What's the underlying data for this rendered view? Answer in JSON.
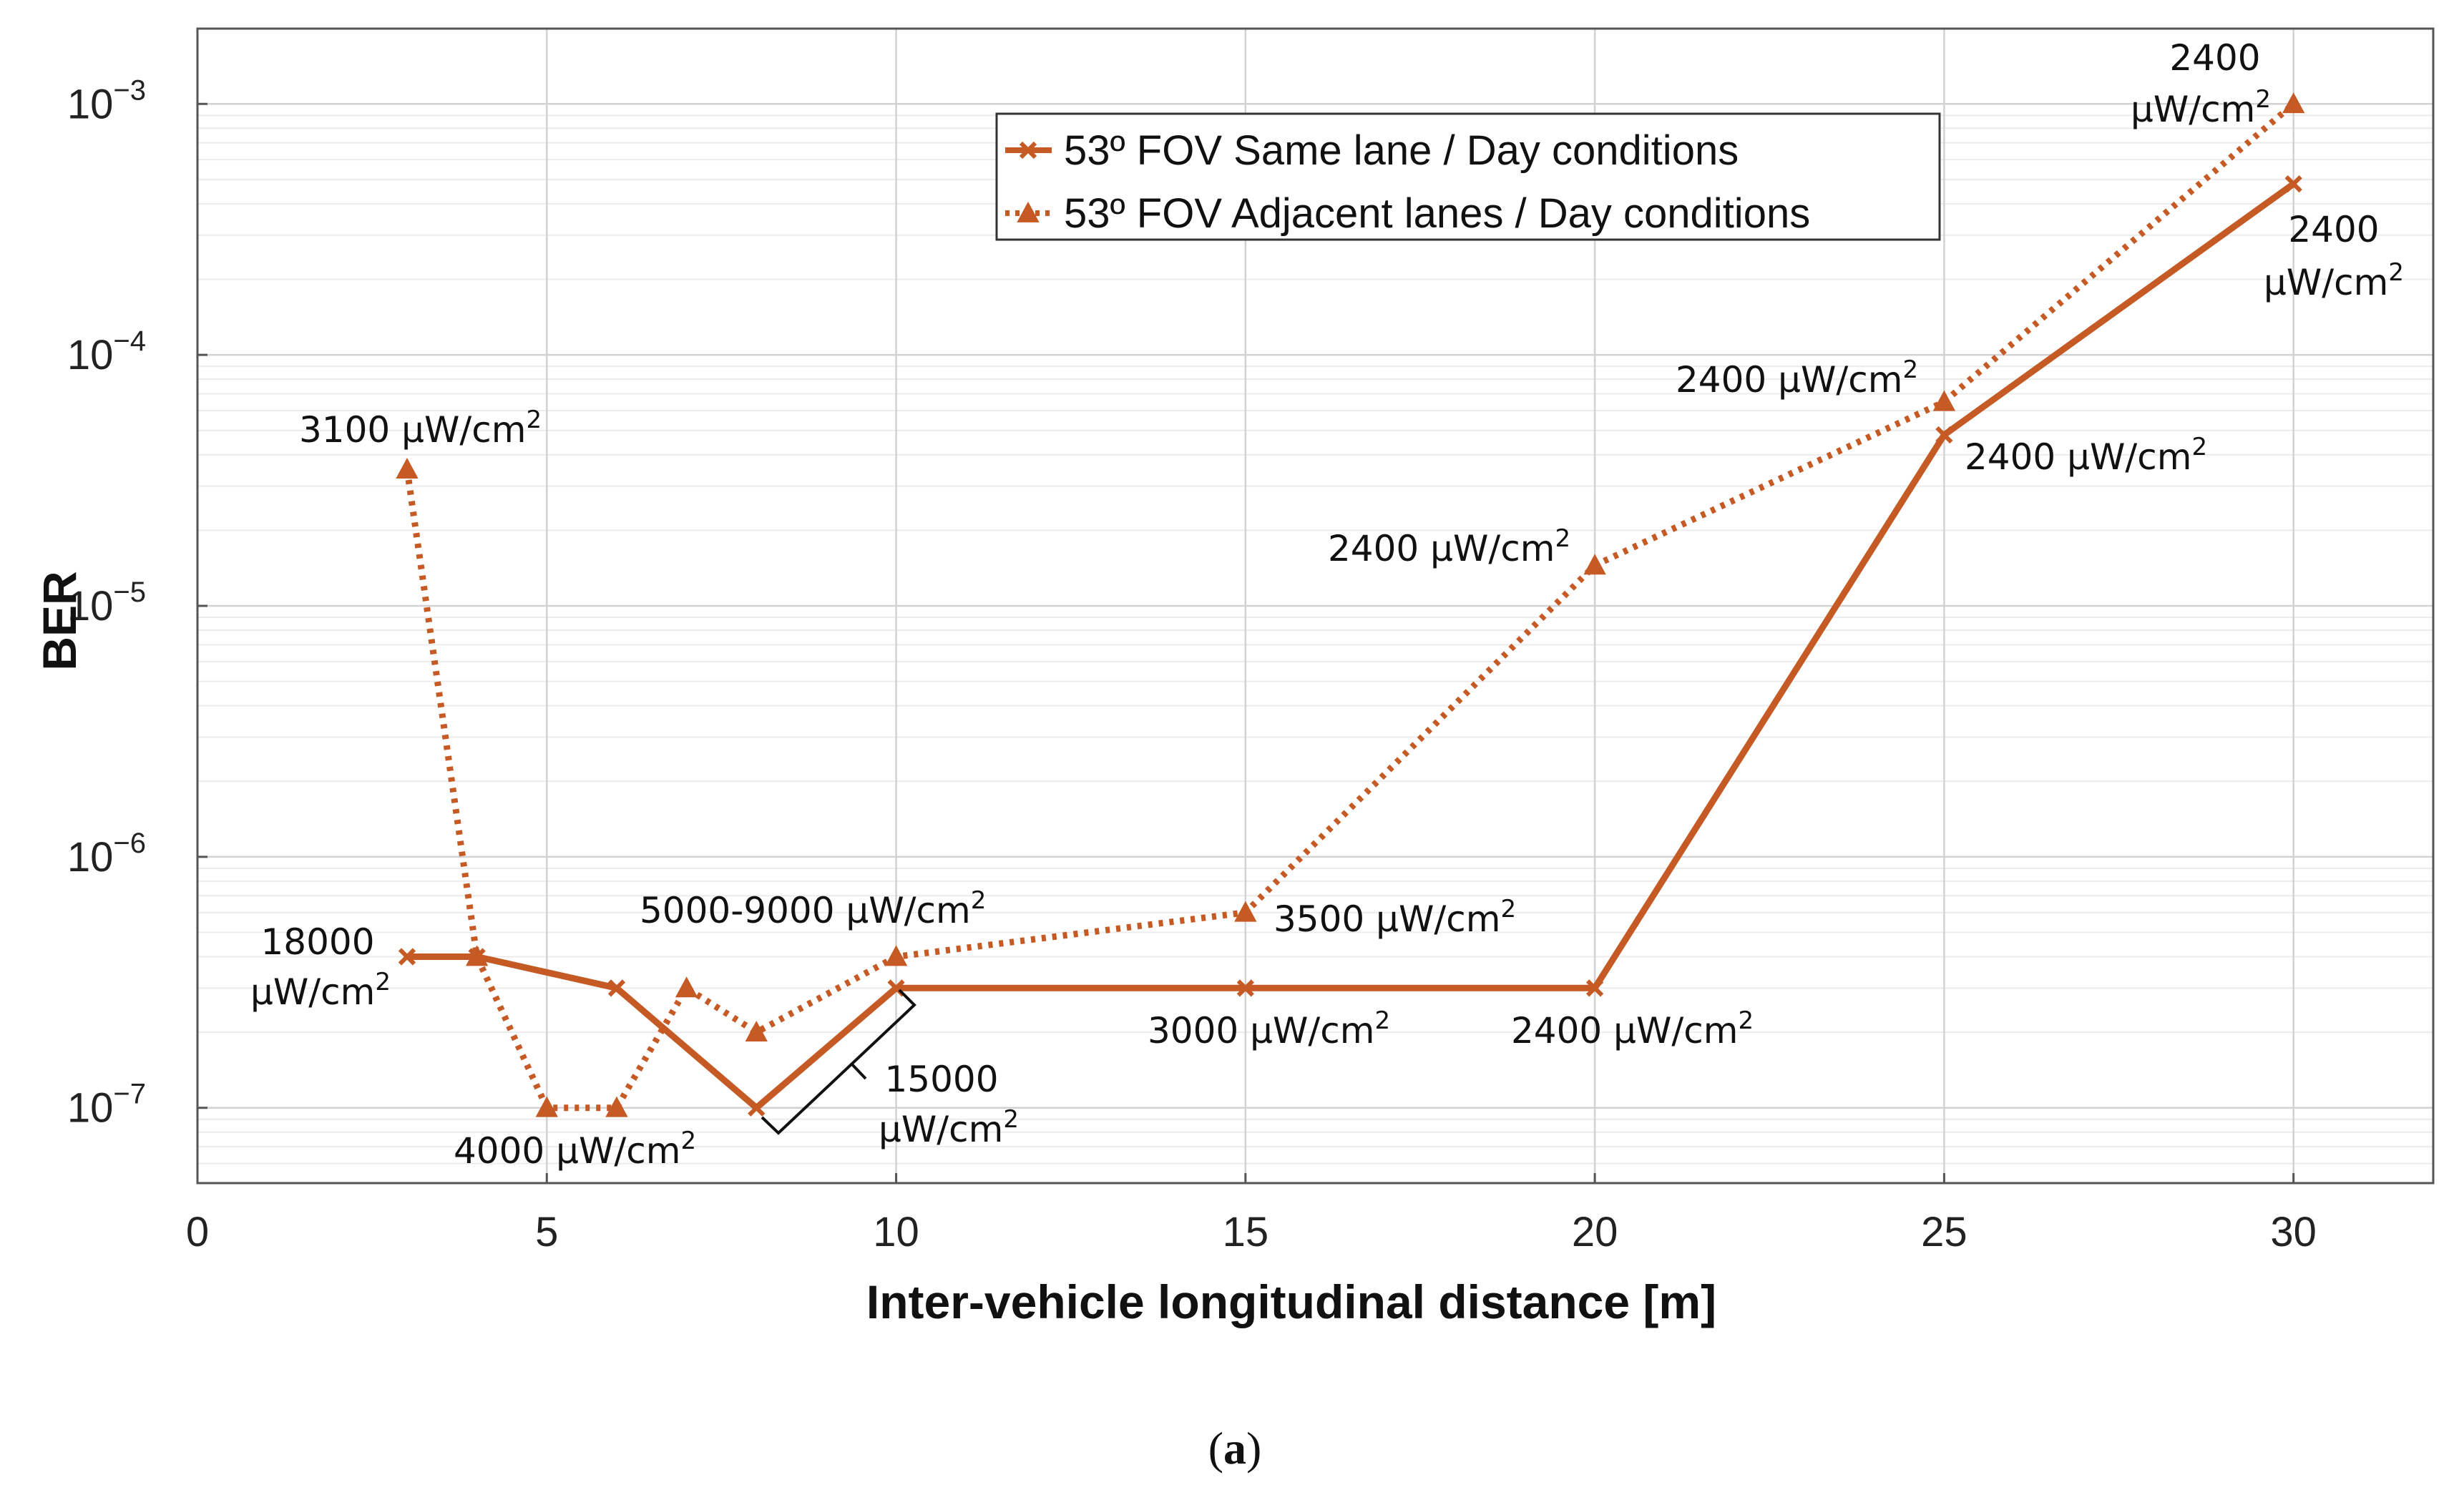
{
  "chart_data": {
    "type": "line",
    "title": "",
    "xlabel": "Inter-vehicle longitudinal distance [m]",
    "ylabel": "BER",
    "xlim": [
      0,
      32
    ],
    "ylim_log10": [
      -7.3,
      -2.7
    ],
    "yscale": "log",
    "grid": true,
    "legend_position": "top-center",
    "x_ticks": [
      0,
      5,
      10,
      15,
      20,
      25,
      30
    ],
    "y_ticks": [
      {
        "base": "10",
        "exp": "−3",
        "log10": -3
      },
      {
        "base": "10",
        "exp": "−4",
        "log10": -4
      },
      {
        "base": "10",
        "exp": "−5",
        "log10": -5
      },
      {
        "base": "10",
        "exp": "−6",
        "log10": -6
      },
      {
        "base": "10",
        "exp": "−7",
        "log10": -7
      }
    ],
    "series": [
      {
        "name": "53º FOV Same lane / Day conditions",
        "style": "solid",
        "marker": "x",
        "color": "#C55A24",
        "x": [
          3,
          4,
          6,
          8,
          10,
          15,
          20,
          25,
          30
        ],
        "y": [
          4e-07,
          4e-07,
          3e-07,
          1e-07,
          3e-07,
          3e-07,
          3e-07,
          4.8e-05,
          0.00048
        ]
      },
      {
        "name": "53º FOV Adjacent lanes / Day conditions",
        "style": "dotted",
        "marker": "triangle",
        "color": "#C55A24",
        "x": [
          3,
          4,
          5,
          6,
          7,
          8,
          10,
          15,
          20,
          25,
          30
        ],
        "y": [
          3.5e-05,
          4e-07,
          1e-07,
          1e-07,
          3e-07,
          2e-07,
          4e-07,
          6e-07,
          1.45e-05,
          6.5e-05,
          0.001
        ]
      }
    ],
    "annotations": [
      {
        "id": "a1",
        "lines": [
          "3100 μW/cm",
          "2"
        ]
      },
      {
        "id": "a2",
        "lines": [
          "18000"
        ]
      },
      {
        "id": "a3",
        "lines": [
          "μW/cm",
          "2"
        ]
      },
      {
        "id": "a4",
        "lines": [
          "4000 μW/cm",
          "2"
        ]
      },
      {
        "id": "a5",
        "lines": [
          "5000-9000 μW/cm",
          "2"
        ]
      },
      {
        "id": "a6",
        "lines": [
          "15000"
        ]
      },
      {
        "id": "a7",
        "lines": [
          "μW/cm",
          "2"
        ]
      },
      {
        "id": "a8",
        "lines": [
          "3500 μW/cm",
          "2"
        ]
      },
      {
        "id": "a9",
        "lines": [
          "3000 μW/cm",
          "2"
        ]
      },
      {
        "id": "a10",
        "lines": [
          "2400 μW/cm",
          "2"
        ]
      },
      {
        "id": "a11",
        "lines": [
          "2400 μW/cm",
          "2"
        ]
      },
      {
        "id": "a12",
        "lines": [
          "2400 μW/cm",
          "2"
        ]
      },
      {
        "id": "a13",
        "lines": [
          "2400 μW/cm",
          "2"
        ]
      },
      {
        "id": "a14",
        "lines": [
          "2400"
        ]
      },
      {
        "id": "a15",
        "lines": [
          "μW/cm",
          "2"
        ]
      },
      {
        "id": "a16",
        "lines": [
          "2400"
        ]
      },
      {
        "id": "a17",
        "lines": [
          "μW/cm",
          "2"
        ]
      }
    ]
  },
  "caption": {
    "open": "(",
    "letter": "a",
    "close": ")"
  }
}
